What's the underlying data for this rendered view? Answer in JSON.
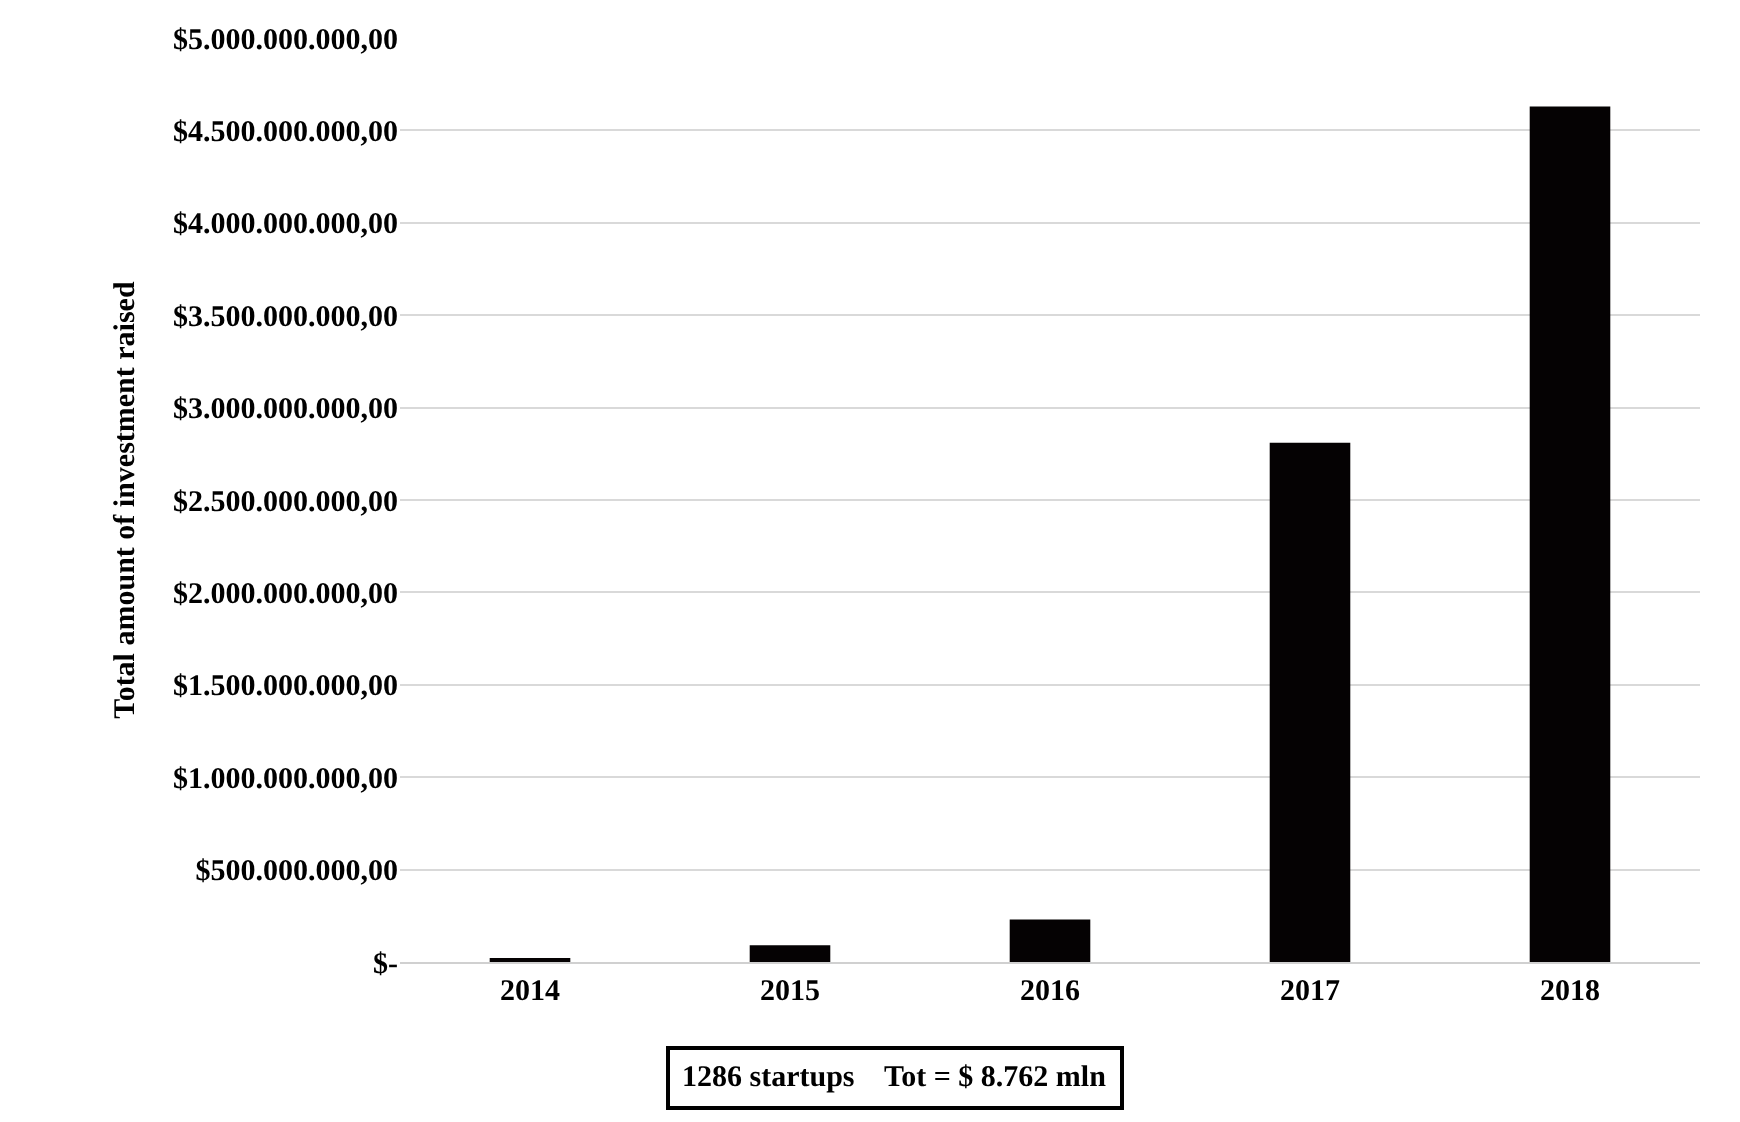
{
  "chart_data": {
    "type": "bar",
    "ylabel": "Total amount of investment raised",
    "categories": [
      "2014",
      "2015",
      "2016",
      "2017",
      "2018"
    ],
    "values": [
      20000000,
      90000000,
      230000000,
      2810000000,
      4630000000
    ],
    "color": "#050203",
    "ylim": [
      0,
      5000000000
    ],
    "yticks": [
      {
        "value": 0,
        "label": "$-"
      },
      {
        "value": 500000000,
        "label": "$500.000.000,00"
      },
      {
        "value": 1000000000,
        "label": "$1.000.000.000,00"
      },
      {
        "value": 1500000000,
        "label": "$1.500.000.000,00"
      },
      {
        "value": 2000000000,
        "label": "$2.000.000.000,00"
      },
      {
        "value": 2500000000,
        "label": "$2.500.000.000,00"
      },
      {
        "value": 3000000000,
        "label": "$3.000.000.000,00"
      },
      {
        "value": 3500000000,
        "label": "$3.500.000.000,00"
      },
      {
        "value": 4000000000,
        "label": "$4.000.000.000,00"
      },
      {
        "value": 4500000000,
        "label": "$4.500.000.000,00"
      },
      {
        "value": 5000000000,
        "label": "$5.000.000.000,00"
      }
    ],
    "grid": "y",
    "annotations": [
      "1286 startups    Tot = $ 8.762 mln"
    ]
  }
}
